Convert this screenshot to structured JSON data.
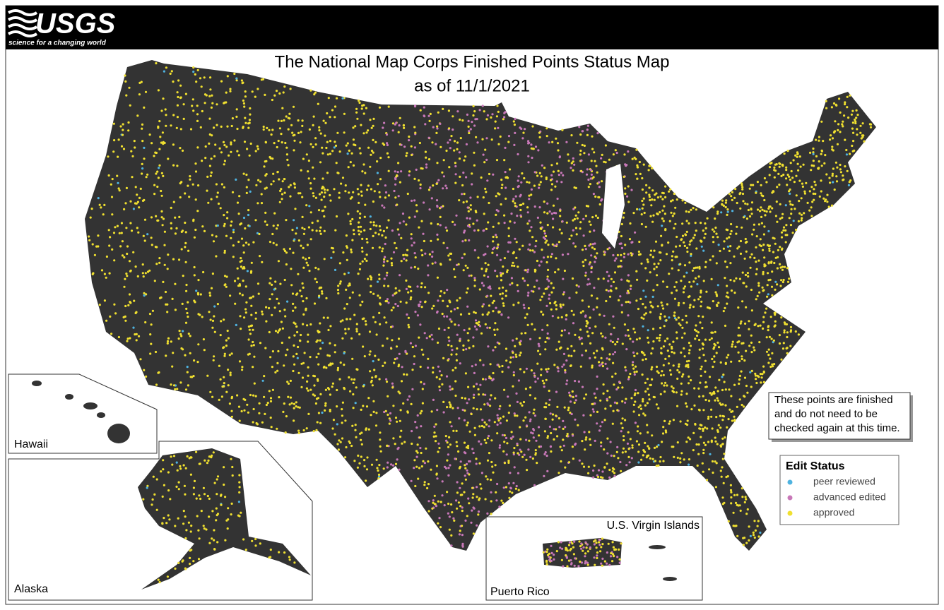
{
  "header": {
    "logo": "USGS",
    "tagline": "science for a changing world"
  },
  "title": {
    "line1": "The National Map Corps Finished Points Status Map",
    "line2": "as of 11/1/2021"
  },
  "insets": {
    "hawaii": "Hawaii",
    "alaska": "Alaska",
    "virgin_islands": "U.S. Virgin Islands",
    "puerto_rico": "Puerto Rico"
  },
  "note": {
    "lines": [
      "These points are finished",
      "and do not need to be",
      "checked again at this time."
    ]
  },
  "legend": {
    "title": "Edit Status",
    "items": [
      {
        "label": "peer reviewed",
        "color": "#4fb3e0"
      },
      {
        "label": "advanced edited",
        "color": "#c878b8"
      },
      {
        "label": "approved",
        "color": "#f0e030"
      }
    ]
  }
}
